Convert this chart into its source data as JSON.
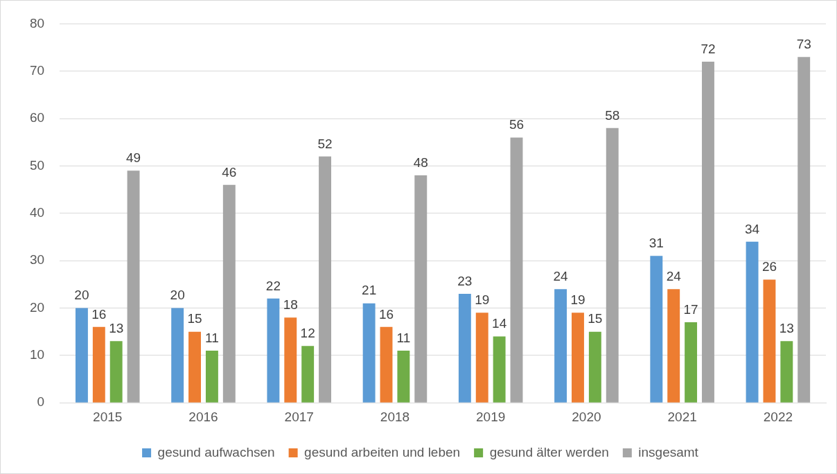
{
  "chart_data": {
    "type": "bar",
    "categories": [
      "2015",
      "2016",
      "2017",
      "2018",
      "2019",
      "2020",
      "2021",
      "2022"
    ],
    "series": [
      {
        "name": "gesund aufwachsen",
        "color": "#5b9bd5",
        "values": [
          20,
          20,
          22,
          21,
          23,
          24,
          31,
          34
        ]
      },
      {
        "name": "gesund arbeiten und leben",
        "color": "#ed7d31",
        "values": [
          16,
          15,
          18,
          16,
          19,
          19,
          24,
          26
        ]
      },
      {
        "name": "gesund älter werden",
        "color": "#70ad47",
        "values": [
          13,
          11,
          12,
          11,
          14,
          15,
          17,
          13
        ]
      },
      {
        "name": "insgesamt",
        "color": "#a5a5a5",
        "values": [
          49,
          46,
          52,
          48,
          56,
          58,
          72,
          73
        ]
      }
    ],
    "ylim": [
      0,
      80
    ],
    "yticks": [
      0,
      10,
      20,
      30,
      40,
      50,
      60,
      70,
      80
    ],
    "grid": "y",
    "legend": "bottom",
    "data_labels": true
  }
}
